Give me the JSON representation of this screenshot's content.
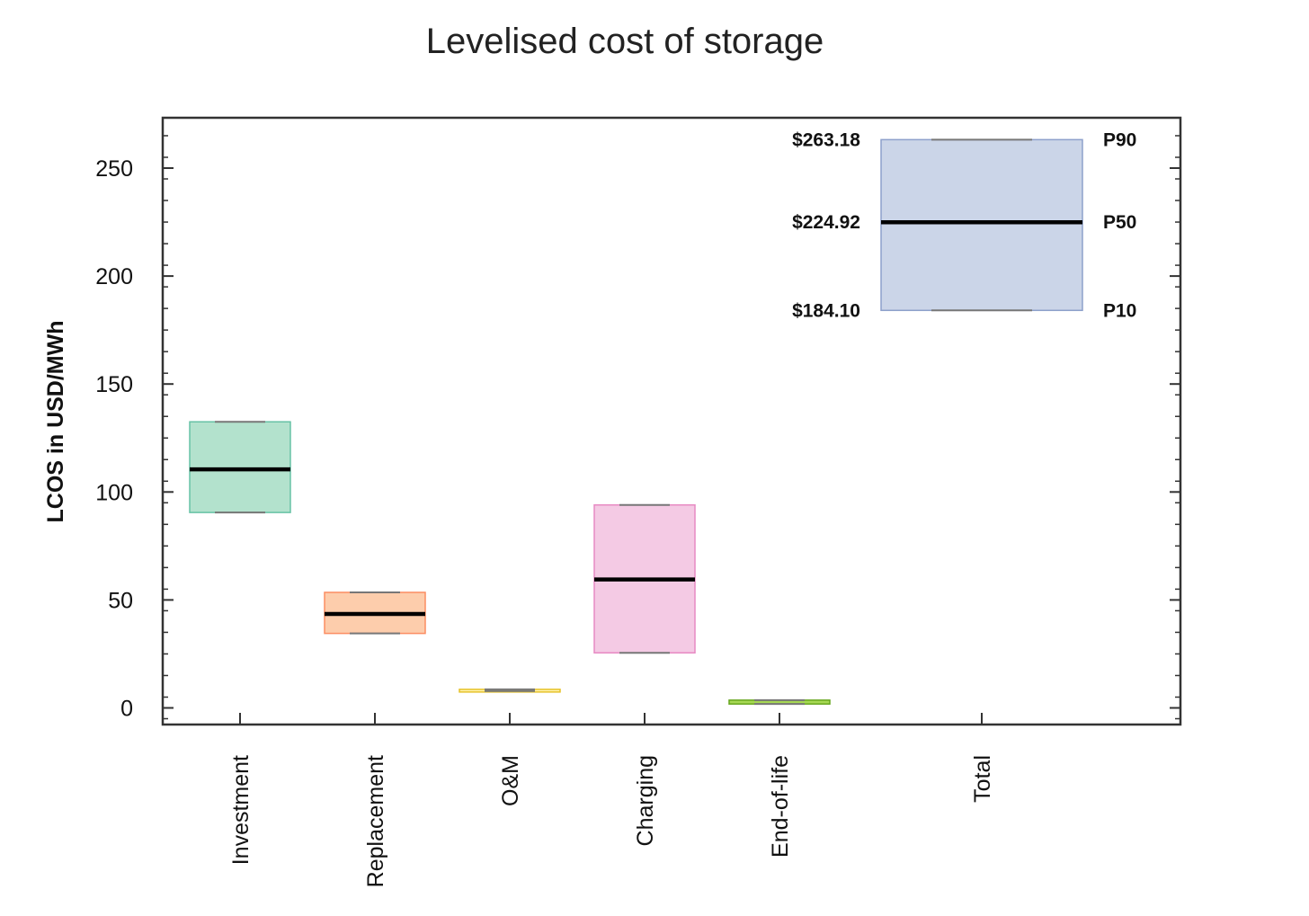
{
  "chart_data": {
    "type": "box",
    "title": "Levelised cost of storage",
    "xlabel": "",
    "ylabel": "LCOS in USD/MWh",
    "ylim": [
      -8,
      274
    ],
    "yticks": [
      0,
      50,
      100,
      150,
      200,
      250
    ],
    "yticks_labels": [
      "0",
      "50",
      "100",
      "150",
      "200",
      "250"
    ],
    "grid": false,
    "categories": [
      "Investment",
      "Replacement",
      "O&M",
      "Charging",
      "End-of-life",
      "Total"
    ],
    "series": [
      {
        "category": "Investment",
        "p10": 90.5,
        "p50": 110.5,
        "p90": 132.5,
        "color": "#b3e2cd",
        "edge": "#66c2a5"
      },
      {
        "category": "Replacement",
        "p10": 34.5,
        "p50": 43.5,
        "p90": 53.5,
        "color": "#fdcdac",
        "edge": "#fc8d62"
      },
      {
        "category": "O&M",
        "p10": 7.8,
        "p50": 8.2,
        "p90": 8.6,
        "color": "#fff2ae",
        "edge": "#e6c229"
      },
      {
        "category": "Charging",
        "p10": 25.5,
        "p50": 59.5,
        "p90": 94.0,
        "color": "#f4cae4",
        "edge": "#e78ac3"
      },
      {
        "category": "End-of-life",
        "p10": 1.8,
        "p50": 2.8,
        "p90": 3.6,
        "color": "#a6d854",
        "edge": "#66a61e"
      },
      {
        "category": "Total",
        "p10": 184.1,
        "p50": 224.92,
        "p90": 263.18,
        "color": "#cbd5e8",
        "edge": "#8da0cb"
      }
    ],
    "annotations": {
      "total_values": [
        "$263.18",
        "$224.92",
        "$184.10"
      ],
      "percentile_labels": [
        "P90",
        "P50",
        "P10"
      ]
    }
  }
}
